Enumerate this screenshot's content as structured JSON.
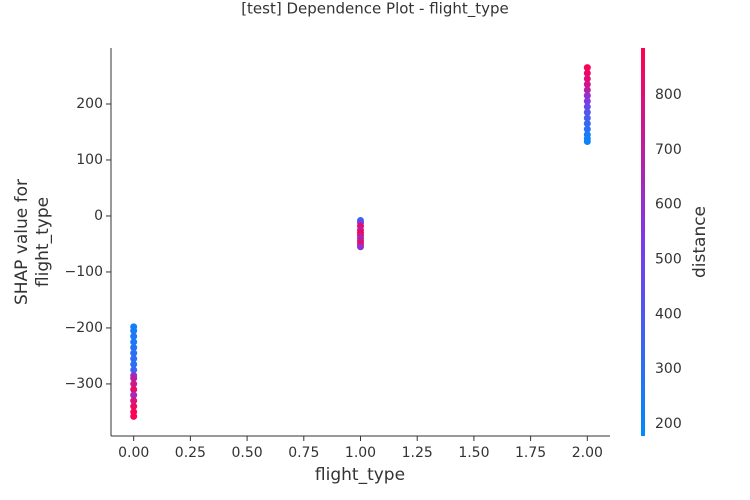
{
  "chart_data": {
    "type": "scatter",
    "title": "[test] Dependence Plot - flight_type",
    "xlabel": "flight_type",
    "ylabel": [
      "SHAP value for",
      "flight_type"
    ],
    "colorbar_label": "distance",
    "x": [
      0,
      0,
      0,
      0,
      0,
      0,
      0,
      0,
      0,
      0,
      0,
      0,
      0,
      0,
      0,
      0,
      0,
      0,
      1,
      1,
      1,
      1,
      1,
      1,
      1,
      1,
      1,
      1,
      2,
      2,
      2,
      2,
      2,
      2,
      2,
      2,
      2,
      2,
      2,
      2,
      2,
      2,
      2
    ],
    "y": [
      -198,
      -205,
      -215,
      -225,
      -235,
      -245,
      -255,
      -265,
      -275,
      -285,
      -290,
      -300,
      -310,
      -320,
      -330,
      -340,
      -350,
      -358,
      -8,
      -12,
      -18,
      -25,
      -30,
      -35,
      -40,
      -45,
      -50,
      -55,
      265,
      255,
      245,
      235,
      225,
      215,
      205,
      195,
      185,
      175,
      165,
      155,
      145,
      138,
      133
    ],
    "c": [
      220,
      240,
      260,
      250,
      280,
      300,
      310,
      290,
      350,
      600,
      700,
      760,
      820,
      650,
      780,
      850,
      870,
      880,
      300,
      500,
      820,
      700,
      860,
      780,
      650,
      720,
      840,
      600,
      870,
      840,
      800,
      760,
      700,
      600,
      550,
      480,
      420,
      380,
      340,
      300,
      260,
      230,
      210
    ],
    "colormap": [
      "#008afb",
      "#7c3be8",
      "#ff0052"
    ],
    "xlim": [
      -0.1,
      2.1
    ],
    "ylim": [
      -393,
      300
    ],
    "clim": [
      178,
      886
    ],
    "xticks": [
      {
        "value": 0,
        "label": "0.00"
      },
      {
        "value": 0.25,
        "label": "0.25"
      },
      {
        "value": 0.5,
        "label": "0.50"
      },
      {
        "value": 0.75,
        "label": "0.75"
      },
      {
        "value": 1,
        "label": "1.00"
      },
      {
        "value": 1.25,
        "label": "1.25"
      },
      {
        "value": 1.5,
        "label": "1.50"
      },
      {
        "value": 1.75,
        "label": "1.75"
      },
      {
        "value": 2,
        "label": "2.00"
      }
    ],
    "yticks": [
      {
        "value": -300,
        "label": "−300"
      },
      {
        "value": -200,
        "label": "−200"
      },
      {
        "value": -100,
        "label": "−100"
      },
      0,
      100,
      200
    ],
    "cticks": [
      200,
      300,
      400,
      500,
      600,
      700,
      800
    ]
  }
}
